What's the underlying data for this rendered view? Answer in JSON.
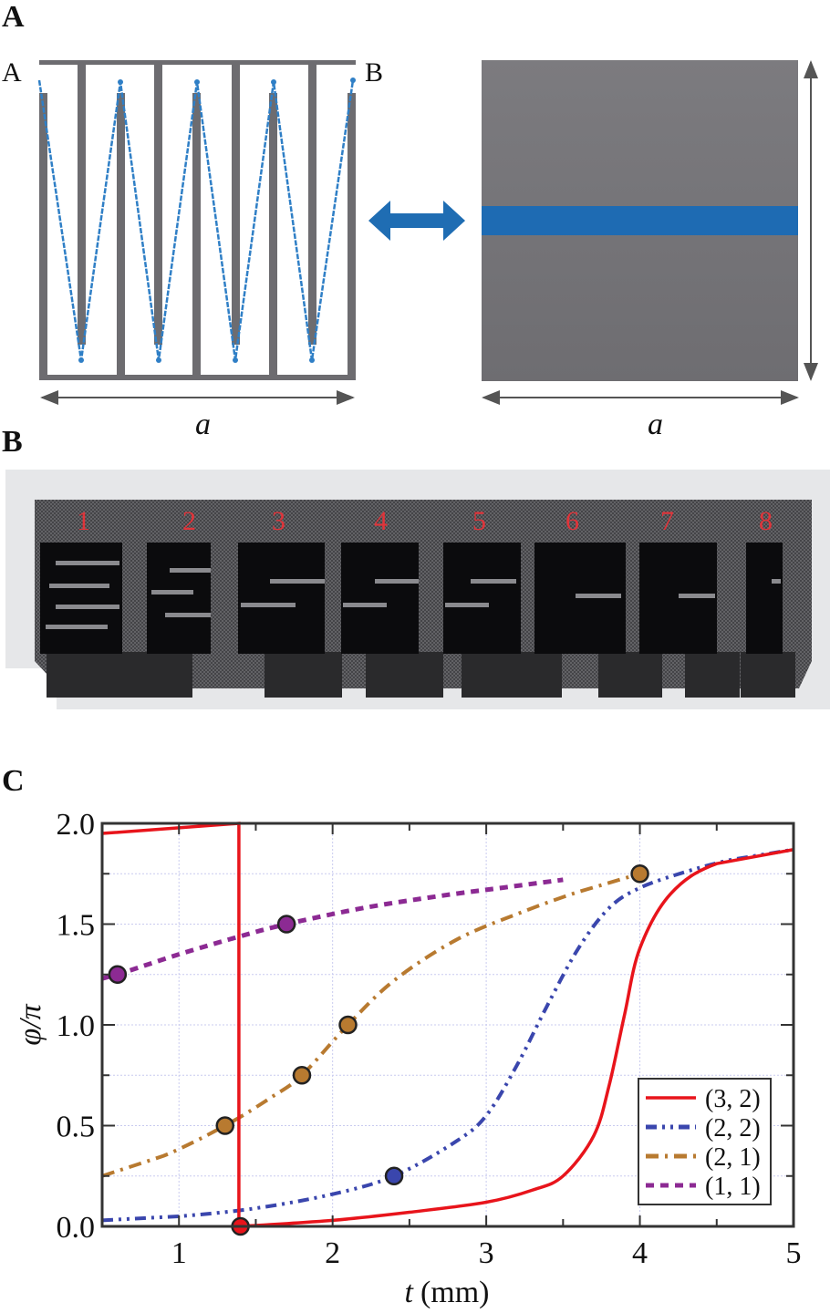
{
  "figure": {
    "panels": [
      {
        "id": "A",
        "label": "A"
      },
      {
        "id": "B",
        "label": "B"
      },
      {
        "id": "C",
        "label": "C"
      }
    ]
  },
  "panel_a": {
    "left_diagram": {
      "corner_left_label": "A",
      "corner_right_label": "B",
      "width_label": "a",
      "frame_color": "#6d6c70",
      "path_color": "#2f7fc6"
    },
    "arrow_color": "#1f6db3",
    "right_diagram": {
      "width_label": "a",
      "block_color": "#78777b",
      "band_color": "#1e6bb3"
    }
  },
  "panel_b": {
    "photo_description": "3D-printed dark grey block with eight numbered channels",
    "channel_numbers": [
      "1",
      "2",
      "3",
      "4",
      "5",
      "6",
      "7",
      "8"
    ],
    "number_color": "#e0343a"
  },
  "panel_c": {
    "ylabel": "φ/π",
    "xlabel_var": "t",
    "xlabel_unit": "(mm)",
    "yticks": [
      "2.0",
      "1.5",
      "1.0",
      "0.5",
      "0.0"
    ],
    "xticks": [
      "1",
      "2",
      "3",
      "4",
      "5"
    ],
    "legend": [
      {
        "label": "(3, 2)",
        "color": "#e8141b",
        "style": "solid"
      },
      {
        "label": "(2, 2)",
        "color": "#3a46ad",
        "style": "dash-dot-dot"
      },
      {
        "label": "(2, 1)",
        "color": "#b87a30",
        "style": "dash-dot"
      },
      {
        "label": "(1, 1)",
        "color": "#8c2a93",
        "style": "dashed"
      }
    ]
  },
  "chart_data": {
    "type": "line",
    "title": "",
    "xlabel": "t (mm)",
    "ylabel": "φ/π",
    "xlim": [
      0.5,
      5
    ],
    "ylim": [
      0,
      2
    ],
    "grid": true,
    "legend_position": "lower right",
    "series": [
      {
        "name": "(3, 2)",
        "color": "#e8141b",
        "line": "solid",
        "x": [
          0.5,
          1.39,
          1.39,
          1.4,
          2.0,
          2.5,
          3.0,
          3.3,
          3.5,
          3.7,
          3.8,
          3.9,
          4.0,
          4.2,
          4.5,
          5.0
        ],
        "y": [
          1.95,
          2.0,
          0.0,
          0.0,
          0.03,
          0.07,
          0.12,
          0.18,
          0.25,
          0.45,
          0.7,
          1.05,
          1.38,
          1.65,
          1.8,
          1.87
        ],
        "markers": [
          {
            "x": 1.4,
            "y": 0.0
          }
        ]
      },
      {
        "name": "(2, 2)",
        "color": "#3a46ad",
        "line": "dash-dot-dot",
        "x": [
          0.5,
          1.0,
          1.5,
          2.0,
          2.4,
          2.8,
          3.0,
          3.2,
          3.4,
          3.6,
          3.8,
          4.0,
          4.3,
          4.6,
          5.0
        ],
        "y": [
          0.03,
          0.05,
          0.09,
          0.16,
          0.25,
          0.42,
          0.55,
          0.8,
          1.1,
          1.38,
          1.58,
          1.68,
          1.76,
          1.82,
          1.87
        ],
        "markers": [
          {
            "x": 2.4,
            "y": 0.25
          }
        ]
      },
      {
        "name": "(2, 1)",
        "color": "#b87a30",
        "line": "dash-dot",
        "x": [
          0.5,
          0.9,
          1.3,
          1.6,
          1.8,
          2.1,
          2.4,
          2.8,
          3.2,
          3.6,
          4.0
        ],
        "y": [
          0.25,
          0.35,
          0.5,
          0.64,
          0.75,
          1.0,
          1.22,
          1.42,
          1.55,
          1.66,
          1.75
        ],
        "markers": [
          {
            "x": 1.3,
            "y": 0.5
          },
          {
            "x": 1.8,
            "y": 0.75
          },
          {
            "x": 2.1,
            "y": 1.0
          },
          {
            "x": 4.0,
            "y": 1.75
          }
        ]
      },
      {
        "name": "(1, 1)",
        "color": "#8c2a93",
        "line": "dashed",
        "x": [
          0.5,
          0.6,
          1.0,
          1.4,
          1.7,
          2.2,
          2.7,
          3.1,
          3.5
        ],
        "y": [
          1.23,
          1.25,
          1.35,
          1.44,
          1.5,
          1.58,
          1.64,
          1.68,
          1.72
        ],
        "markers": [
          {
            "x": 0.6,
            "y": 1.25
          },
          {
            "x": 1.7,
            "y": 1.5
          }
        ]
      }
    ]
  }
}
